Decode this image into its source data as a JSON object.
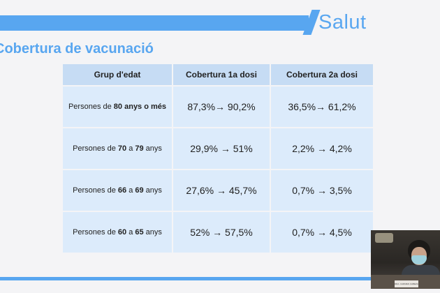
{
  "brand": {
    "name": "Salut"
  },
  "slide": {
    "title": "Cobertura de vacunació"
  },
  "table": {
    "headers": [
      "Grup d'edat",
      "Cobertura 1a dosi",
      "Cobertura 2a dosi"
    ],
    "rows": [
      {
        "prefix": "Persones de ",
        "from": "80",
        "mid": " anys o més",
        "to": "",
        "suffix": "",
        "dose1": "87,3%→ 90,2%",
        "dose2": "36,5%→ 61,2%"
      },
      {
        "prefix": "Persones de ",
        "from": "70",
        "mid": " a ",
        "to": "79",
        "suffix": " anys",
        "dose1": "29,9% → 51%",
        "dose2": "2,2% → 4,2%"
      },
      {
        "prefix": "Persones de ",
        "from": "66",
        "mid": " a ",
        "to": "69",
        "suffix": " anys",
        "dose1": "27,6% → 45,7%",
        "dose2": "0,7% → 3,5%"
      },
      {
        "prefix": "Persones de ",
        "from": "60",
        "mid": " a ",
        "to": "65",
        "suffix": " anys",
        "dose1": "52% → 57,5%",
        "dose2": "0,7% → 4,5%"
      }
    ]
  },
  "video": {
    "nameplate": "DRA. CARMEN CABEZAS"
  }
}
